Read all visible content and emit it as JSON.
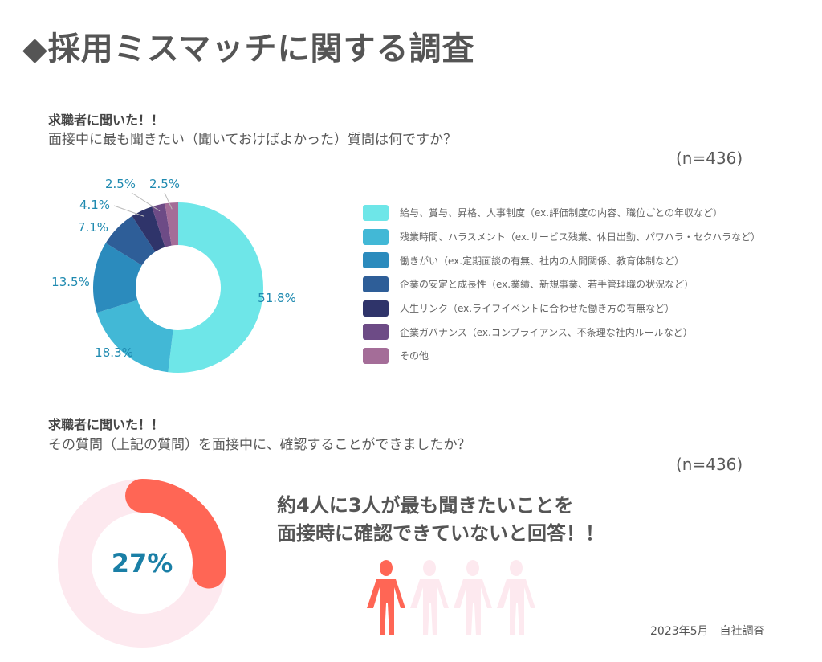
{
  "title": "◆採用ミスマッチに関する調査",
  "section1": {
    "heading": "求職者に聞いた！！",
    "question": "面接中に最も聞きたい（聞いておけばよかった）質問は何ですか？",
    "n": "(n=436)"
  },
  "chart_data": {
    "type": "pie",
    "variant": "donut",
    "categories": [
      "給与、賞与、昇格、人事制度（ex.評価制度の内容、職位ごとの年収など）",
      "残業時間、ハラスメント（ex.サービス残業、休日出勤、パワハラ・セクハラなど）",
      "働きがい（ex.定期面談の有無、社内の人間関係、教育体制など）",
      "企業の安定と成長性（ex.業績、新規事業、若手管理職の状況など）",
      "人生リンク（ex.ライフイベントに合わせた働き方の有無など）",
      "企業ガバナンス（ex.コンプライアンス、不条理な社内ルールなど）",
      "その他"
    ],
    "values": [
      51.8,
      18.3,
      13.5,
      7.1,
      4.1,
      2.5,
      2.5
    ],
    "labels": [
      "51.8%",
      "18.3%",
      "13.5%",
      "7.1%",
      "4.1%",
      "2.5%",
      "2.5%"
    ],
    "colors": [
      "#6ee6e8",
      "#42b8d6",
      "#2b8bbd",
      "#2e5e98",
      "#2f346a",
      "#6d4b86",
      "#a46d98"
    ],
    "legend_position": "right"
  },
  "section2": {
    "heading": "求職者に聞いた！！",
    "question": "その質問（上記の質問）を面接中に、確認することができましたか？",
    "n": "(n=436)",
    "percent_value": 27,
    "percent_label": "27%",
    "arc_color": "#ff6655",
    "track_color": "#fde9ef",
    "message_line1": "約4人に3人が最も聞きたいことを",
    "message_line2": "面接時に確認できていないと回答！！",
    "people_total": 4,
    "people_highlighted": 1
  },
  "footer": "2023年5月　自社調査"
}
